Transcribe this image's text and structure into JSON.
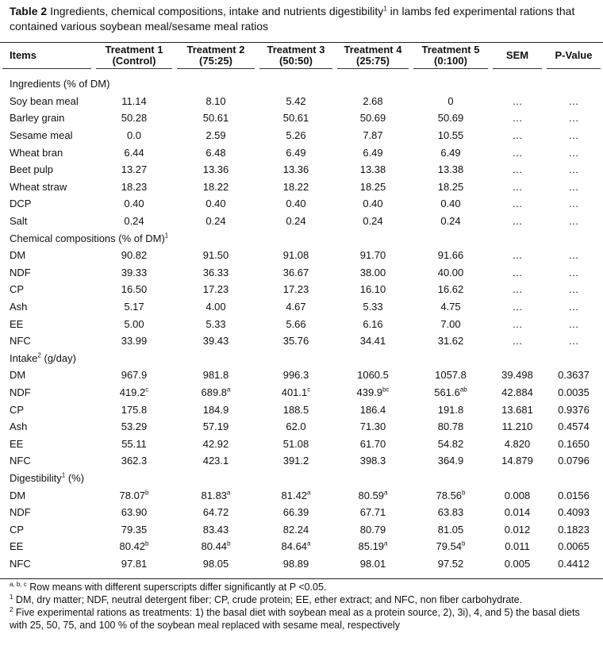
{
  "caption": {
    "label": "Table 2",
    "text": " Ingredients, chemical compositions, intake and nutrients digestibility",
    "sup": "1",
    "text2": " in lambs fed experimental rations that contained various soybean meal/sesame meal ratios"
  },
  "headers": [
    {
      "l1": "Items",
      "l2": ""
    },
    {
      "l1": "Treatment 1",
      "l2": "(Control)"
    },
    {
      "l1": "Treatment 2",
      "l2": "(75:25)"
    },
    {
      "l1": "Treatment 3",
      "l2": "(50:50)"
    },
    {
      "l1": "Treatment 4",
      "l2": "(25:75)"
    },
    {
      "l1": "Treatment 5",
      "l2": "(0:100)"
    },
    {
      "l1": "SEM",
      "l2": ""
    },
    {
      "l1": "P-Value",
      "l2": ""
    }
  ],
  "sections": [
    {
      "title": "Ingredients (% of DM)",
      "sup": "",
      "rows": [
        {
          "label": "Soy bean meal",
          "cells": [
            [
              "11.14",
              ""
            ],
            [
              "8.10",
              ""
            ],
            [
              "5.42",
              ""
            ],
            [
              "2.68",
              ""
            ],
            [
              "0",
              ""
            ],
            [
              "…",
              ""
            ],
            [
              "…",
              ""
            ]
          ]
        },
        {
          "label": "Barley grain",
          "cells": [
            [
              "50.28",
              ""
            ],
            [
              "50.61",
              ""
            ],
            [
              "50.61",
              ""
            ],
            [
              "50.69",
              ""
            ],
            [
              "50.69",
              ""
            ],
            [
              "…",
              ""
            ],
            [
              "…",
              ""
            ]
          ]
        },
        {
          "label": "Sesame meal",
          "cells": [
            [
              "0.0",
              ""
            ],
            [
              "2.59",
              ""
            ],
            [
              "5.26",
              ""
            ],
            [
              "7.87",
              ""
            ],
            [
              "10.55",
              ""
            ],
            [
              "…",
              ""
            ],
            [
              "…",
              ""
            ]
          ]
        },
        {
          "label": "Wheat bran",
          "cells": [
            [
              "6.44",
              ""
            ],
            [
              "6.48",
              ""
            ],
            [
              "6.49",
              ""
            ],
            [
              "6.49",
              ""
            ],
            [
              "6.49",
              ""
            ],
            [
              "…",
              ""
            ],
            [
              "…",
              ""
            ]
          ]
        },
        {
          "label": "Beet pulp",
          "cells": [
            [
              "13.27",
              ""
            ],
            [
              "13.36",
              ""
            ],
            [
              "13.36",
              ""
            ],
            [
              "13.38",
              ""
            ],
            [
              "13.38",
              ""
            ],
            [
              "…",
              ""
            ],
            [
              "…",
              ""
            ]
          ]
        },
        {
          "label": "Wheat straw",
          "cells": [
            [
              "18.23",
              ""
            ],
            [
              "18.22",
              ""
            ],
            [
              "18.22",
              ""
            ],
            [
              "18.25",
              ""
            ],
            [
              "18.25",
              ""
            ],
            [
              "…",
              ""
            ],
            [
              "…",
              ""
            ]
          ]
        },
        {
          "label": "DCP",
          "cells": [
            [
              "0.40",
              ""
            ],
            [
              "0.40",
              ""
            ],
            [
              "0.40",
              ""
            ],
            [
              "0.40",
              ""
            ],
            [
              "0.40",
              ""
            ],
            [
              "…",
              ""
            ],
            [
              "…",
              ""
            ]
          ]
        },
        {
          "label": "Salt",
          "cells": [
            [
              "0.24",
              ""
            ],
            [
              "0.24",
              ""
            ],
            [
              "0.24",
              ""
            ],
            [
              "0.24",
              ""
            ],
            [
              "0.24",
              ""
            ],
            [
              "…",
              ""
            ],
            [
              "…",
              ""
            ]
          ]
        }
      ]
    },
    {
      "title": "Chemical compositions (% of DM)",
      "sup": "1",
      "rows": [
        {
          "label": "DM",
          "cells": [
            [
              "90.82",
              ""
            ],
            [
              "91.50",
              ""
            ],
            [
              "91.08",
              ""
            ],
            [
              "91.70",
              ""
            ],
            [
              "91.66",
              ""
            ],
            [
              "…",
              ""
            ],
            [
              "…",
              ""
            ]
          ]
        },
        {
          "label": "NDF",
          "cells": [
            [
              "39.33",
              ""
            ],
            [
              "36.33",
              ""
            ],
            [
              "36.67",
              ""
            ],
            [
              "38.00",
              ""
            ],
            [
              "40.00",
              ""
            ],
            [
              "…",
              ""
            ],
            [
              "…",
              ""
            ]
          ]
        },
        {
          "label": "CP",
          "cells": [
            [
              "16.50",
              ""
            ],
            [
              "17.23",
              ""
            ],
            [
              "17.23",
              ""
            ],
            [
              "16.10",
              ""
            ],
            [
              "16.62",
              ""
            ],
            [
              "…",
              ""
            ],
            [
              "…",
              ""
            ]
          ]
        },
        {
          "label": "Ash",
          "cells": [
            [
              "5.17",
              ""
            ],
            [
              "4.00",
              ""
            ],
            [
              "4.67",
              ""
            ],
            [
              "5.33",
              ""
            ],
            [
              "4.75",
              ""
            ],
            [
              "…",
              ""
            ],
            [
              "…",
              ""
            ]
          ]
        },
        {
          "label": "EE",
          "cells": [
            [
              "5.00",
              ""
            ],
            [
              "5.33",
              ""
            ],
            [
              "5.66",
              ""
            ],
            [
              "6.16",
              ""
            ],
            [
              "7.00",
              ""
            ],
            [
              "…",
              ""
            ],
            [
              "…",
              ""
            ]
          ]
        },
        {
          "label": "NFC",
          "cells": [
            [
              "33.99",
              ""
            ],
            [
              "39.43",
              ""
            ],
            [
              "35.76",
              ""
            ],
            [
              "34.41",
              ""
            ],
            [
              "31.62",
              ""
            ],
            [
              "…",
              ""
            ],
            [
              "…",
              ""
            ]
          ]
        }
      ]
    },
    {
      "title": "Intake",
      "sup": "2",
      "title2": " (g/day)",
      "rows": [
        {
          "label": "DM",
          "cells": [
            [
              "967.9",
              ""
            ],
            [
              "981.8",
              ""
            ],
            [
              "996.3",
              ""
            ],
            [
              "1060.5",
              ""
            ],
            [
              "1057.8",
              ""
            ],
            [
              "39.498",
              ""
            ],
            [
              "0.3637",
              ""
            ]
          ]
        },
        {
          "label": "NDF",
          "cells": [
            [
              "419.2",
              "c"
            ],
            [
              "689.8",
              "a"
            ],
            [
              "401.1",
              "c"
            ],
            [
              "439.9",
              "bc"
            ],
            [
              "561.6",
              "ab"
            ],
            [
              "42.884",
              ""
            ],
            [
              "0.0035",
              ""
            ]
          ]
        },
        {
          "label": "CP",
          "cells": [
            [
              "175.8",
              ""
            ],
            [
              "184.9",
              ""
            ],
            [
              "188.5",
              ""
            ],
            [
              "186.4",
              ""
            ],
            [
              "191.8",
              ""
            ],
            [
              "13.681",
              ""
            ],
            [
              "0.9376",
              ""
            ]
          ]
        },
        {
          "label": "Ash",
          "cells": [
            [
              "53.29",
              ""
            ],
            [
              "57.19",
              ""
            ],
            [
              "62.0",
              ""
            ],
            [
              "71.30",
              ""
            ],
            [
              "80.78",
              ""
            ],
            [
              "11.210",
              ""
            ],
            [
              "0.4574",
              ""
            ]
          ]
        },
        {
          "label": "EE",
          "cells": [
            [
              "55.11",
              ""
            ],
            [
              "42.92",
              ""
            ],
            [
              "51.08",
              ""
            ],
            [
              "61.70",
              ""
            ],
            [
              "54.82",
              ""
            ],
            [
              "4.820",
              ""
            ],
            [
              "0.1650",
              ""
            ]
          ]
        },
        {
          "label": "NFC",
          "cells": [
            [
              "362.3",
              ""
            ],
            [
              "423.1",
              ""
            ],
            [
              "391.2",
              ""
            ],
            [
              "398.3",
              ""
            ],
            [
              "364.9",
              ""
            ],
            [
              "14.879",
              ""
            ],
            [
              "0.0796",
              ""
            ]
          ]
        }
      ]
    },
    {
      "title": "Digestibility",
      "sup": "1",
      "title2": " (%)",
      "rows": [
        {
          "label": "DM",
          "cells": [
            [
              "78.07",
              "b"
            ],
            [
              "81.83",
              "a"
            ],
            [
              "81.42",
              "a"
            ],
            [
              "80.59",
              "a"
            ],
            [
              "78.56",
              "b"
            ],
            [
              "0.008",
              ""
            ],
            [
              "0.0156",
              ""
            ]
          ]
        },
        {
          "label": "NDF",
          "cells": [
            [
              "63.90",
              ""
            ],
            [
              "64.72",
              ""
            ],
            [
              "66.39",
              ""
            ],
            [
              "67.71",
              ""
            ],
            [
              "63.83",
              ""
            ],
            [
              "0.014",
              ""
            ],
            [
              "0.4093",
              ""
            ]
          ]
        },
        {
          "label": "CP",
          "cells": [
            [
              "79.35",
              ""
            ],
            [
              "83.43",
              ""
            ],
            [
              "82.24",
              ""
            ],
            [
              "80.79",
              ""
            ],
            [
              "81.05",
              ""
            ],
            [
              "0.012",
              ""
            ],
            [
              "0.1823",
              ""
            ]
          ]
        },
        {
          "label": "EE",
          "cells": [
            [
              "80.42",
              "b"
            ],
            [
              "80.44",
              "b"
            ],
            [
              "84.64",
              "a"
            ],
            [
              "85.19",
              "a"
            ],
            [
              "79.54",
              "b"
            ],
            [
              "0.011",
              ""
            ],
            [
              "0.0065",
              ""
            ]
          ]
        },
        {
          "label": "NFC",
          "cells": [
            [
              "97.81",
              ""
            ],
            [
              "98.05",
              ""
            ],
            [
              "98.89",
              ""
            ],
            [
              "98.01",
              ""
            ],
            [
              "97.52",
              ""
            ],
            [
              "0.005",
              ""
            ],
            [
              "0.4412",
              ""
            ]
          ]
        }
      ]
    }
  ],
  "footnotes": [
    {
      "sup": "a, b, c",
      "text": " Row means with different superscripts differ significantly at P <0.05."
    },
    {
      "sup": "1",
      "text": " DM, dry matter; NDF, neutral detergent fiber; CP, crude protein; EE, ether extract; and NFC, non fiber carbohydrate."
    },
    {
      "sup": "2",
      "text": " Five experimental rations as treatments: 1) the basal diet with soybean meal as a protein source, 2), 3i), 4, and 5) the basal diets with 25, 50, 75, and 100 % of the soybean meal replaced with sesame meal, respectively"
    }
  ]
}
